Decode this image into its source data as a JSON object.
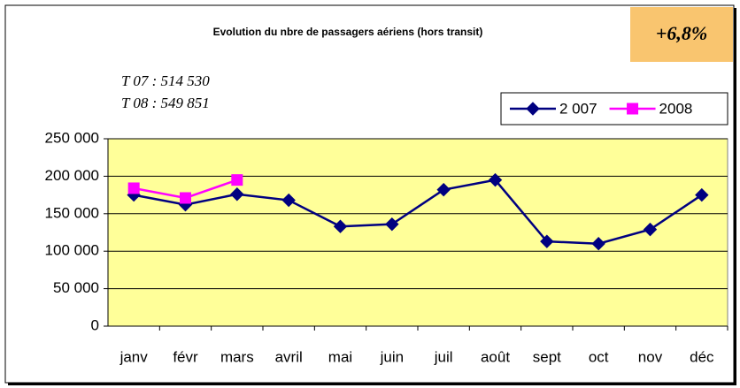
{
  "chart_data": {
    "type": "line",
    "title": "Evolution du nbre de passagers aériens (hors transit)",
    "annotations": [
      "+6,8%",
      "T 07 : 514 530",
      "T 08 : 549 851"
    ],
    "categories": [
      "janv",
      "févr",
      "mars",
      "avril",
      "mai",
      "juin",
      "juil",
      "août",
      "sept",
      "oct",
      "nov",
      "déc"
    ],
    "series": [
      {
        "name": "2 007",
        "color": "#000080",
        "marker": "diamond",
        "values": [
          175000,
          162000,
          176000,
          168000,
          133000,
          136000,
          182000,
          195000,
          113000,
          110000,
          129000,
          175000
        ]
      },
      {
        "name": "2008",
        "color": "#ff00ff",
        "marker": "square",
        "values": [
          184000,
          171000,
          195000,
          null,
          null,
          null,
          null,
          null,
          null,
          null,
          null,
          null
        ]
      }
    ],
    "ylim": [
      0,
      250000
    ],
    "yticks": [
      0,
      {
        "value": 50000,
        "label": "50 000"
      },
      {
        "value": 100000,
        "label": "100 000"
      },
      {
        "value": 150000,
        "label": "150 000"
      },
      {
        "value": 200000,
        "label": "200 000"
      },
      {
        "value": 250000,
        "label": "250 000"
      }
    ],
    "grid": true,
    "legend": "top-right",
    "plot_background": "#ffff99"
  }
}
